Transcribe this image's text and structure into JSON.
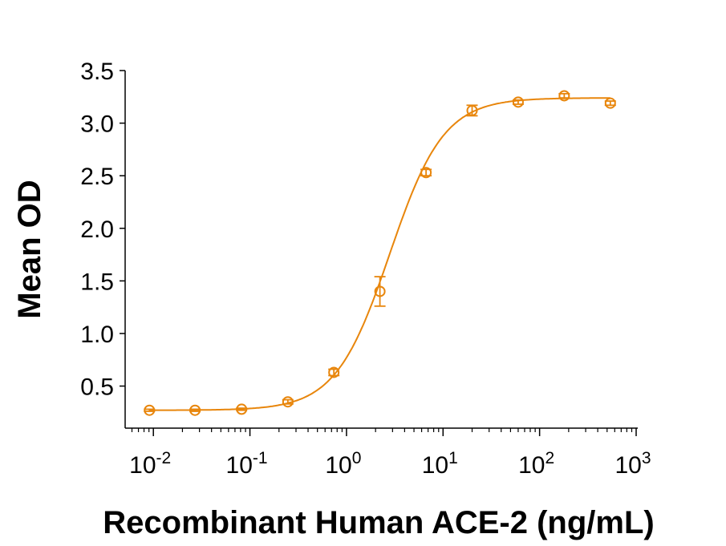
{
  "chart_data": {
    "type": "scatter",
    "title": "",
    "xlabel": "Recombinant Human ACE-2 (ng/mL)",
    "ylabel": "Mean OD",
    "x_scale": "log",
    "xlim": [
      0.0051,
      1000
    ],
    "ylim": [
      0.1,
      3.5
    ],
    "x_ticks": [
      {
        "value": 0.01,
        "base": "10",
        "exp": "-2"
      },
      {
        "value": 0.1,
        "base": "10",
        "exp": "-1"
      },
      {
        "value": 1,
        "base": "10",
        "exp": "0"
      },
      {
        "value": 10,
        "base": "10",
        "exp": "1"
      },
      {
        "value": 100,
        "base": "10",
        "exp": "2"
      },
      {
        "value": 1000,
        "base": "10",
        "exp": "3"
      }
    ],
    "y_ticks": [
      "0.5",
      "1.0",
      "1.5",
      "2.0",
      "2.5",
      "3.0",
      "3.5"
    ],
    "grid": false,
    "color": "#E8860C",
    "marker": "open-circle",
    "series": [
      {
        "x": [
          0.0091,
          0.027,
          0.082,
          0.247,
          0.74,
          2.22,
          6.67,
          20,
          60,
          180,
          540
        ],
        "y": [
          0.27,
          0.27,
          0.28,
          0.35,
          0.63,
          1.4,
          2.53,
          3.12,
          3.2,
          3.26,
          3.19
        ],
        "error": [
          0.01,
          0.01,
          0.01,
          0.02,
          0.03,
          0.14,
          0.03,
          0.05,
          0.02,
          0.02,
          0.02
        ]
      }
    ],
    "fit": {
      "type": "4PL",
      "bottom": 0.27,
      "top": 3.24,
      "ec50": 2.8,
      "hill": 1.55
    }
  }
}
